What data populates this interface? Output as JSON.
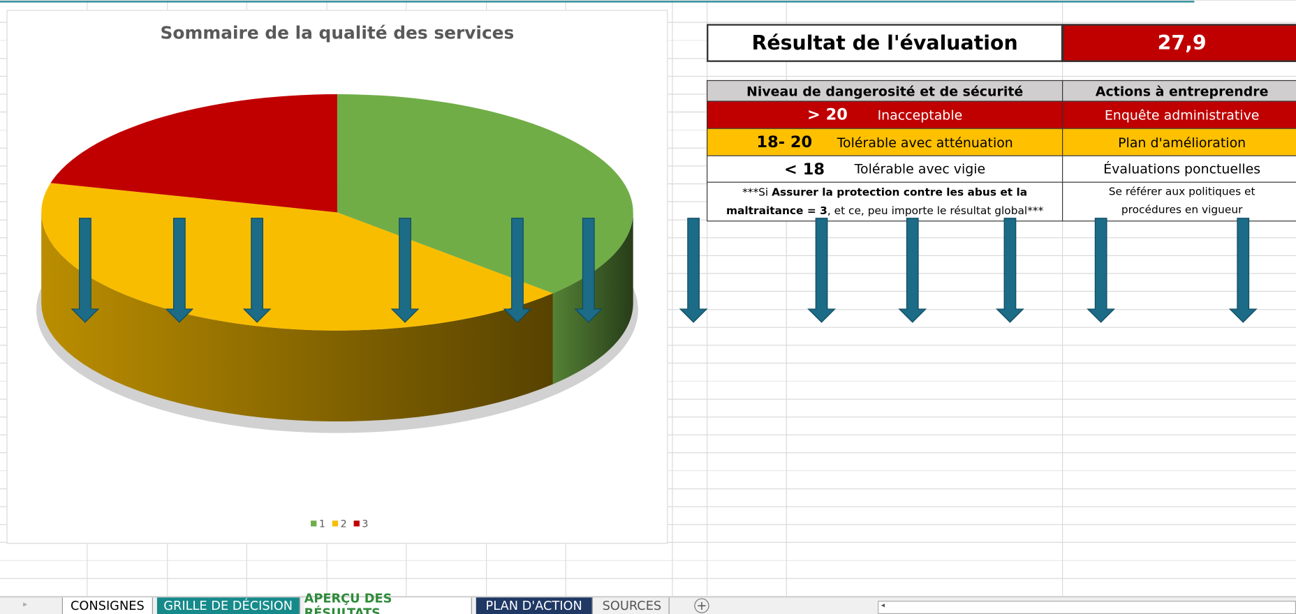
{
  "chart_data": {
    "type": "pie",
    "title": "Sommaire de la qualité des services",
    "categories": [
      "1",
      "2",
      "3"
    ],
    "values": [
      37,
      42,
      21
    ],
    "colors": [
      "#70ad47",
      "#f9bd00",
      "#c00000"
    ],
    "legend": "bottom"
  },
  "result": {
    "label": "Résultat de l'évaluation",
    "score": "27,9"
  },
  "table": {
    "headers": [
      "Niveau de dangerosité et de sécurité",
      "Actions à entreprendre"
    ],
    "rows": [
      [
        "> 20",
        "Inacceptable",
        "Enquête administrative"
      ],
      [
        "18- 20",
        "Tolérable avec atténuation",
        "Plan d'amélioration"
      ],
      [
        "< 18",
        "Tolérable avec vigie",
        "Évaluations ponctuelles"
      ]
    ],
    "note": [
      "***Si ",
      "Assurer la protection contre les abus et la maltraitance = 3",
      ", et ce, peu importe le résultat global***"
    ],
    "note_action": "Se référer aux politiques et procédures en vigueur"
  },
  "tabs": [
    "CONSIGNES",
    "GRILLE DE DÉCISION",
    "APERÇU DES RÉSULTATS",
    "PLAN D'ACTION",
    "SOURCES"
  ]
}
